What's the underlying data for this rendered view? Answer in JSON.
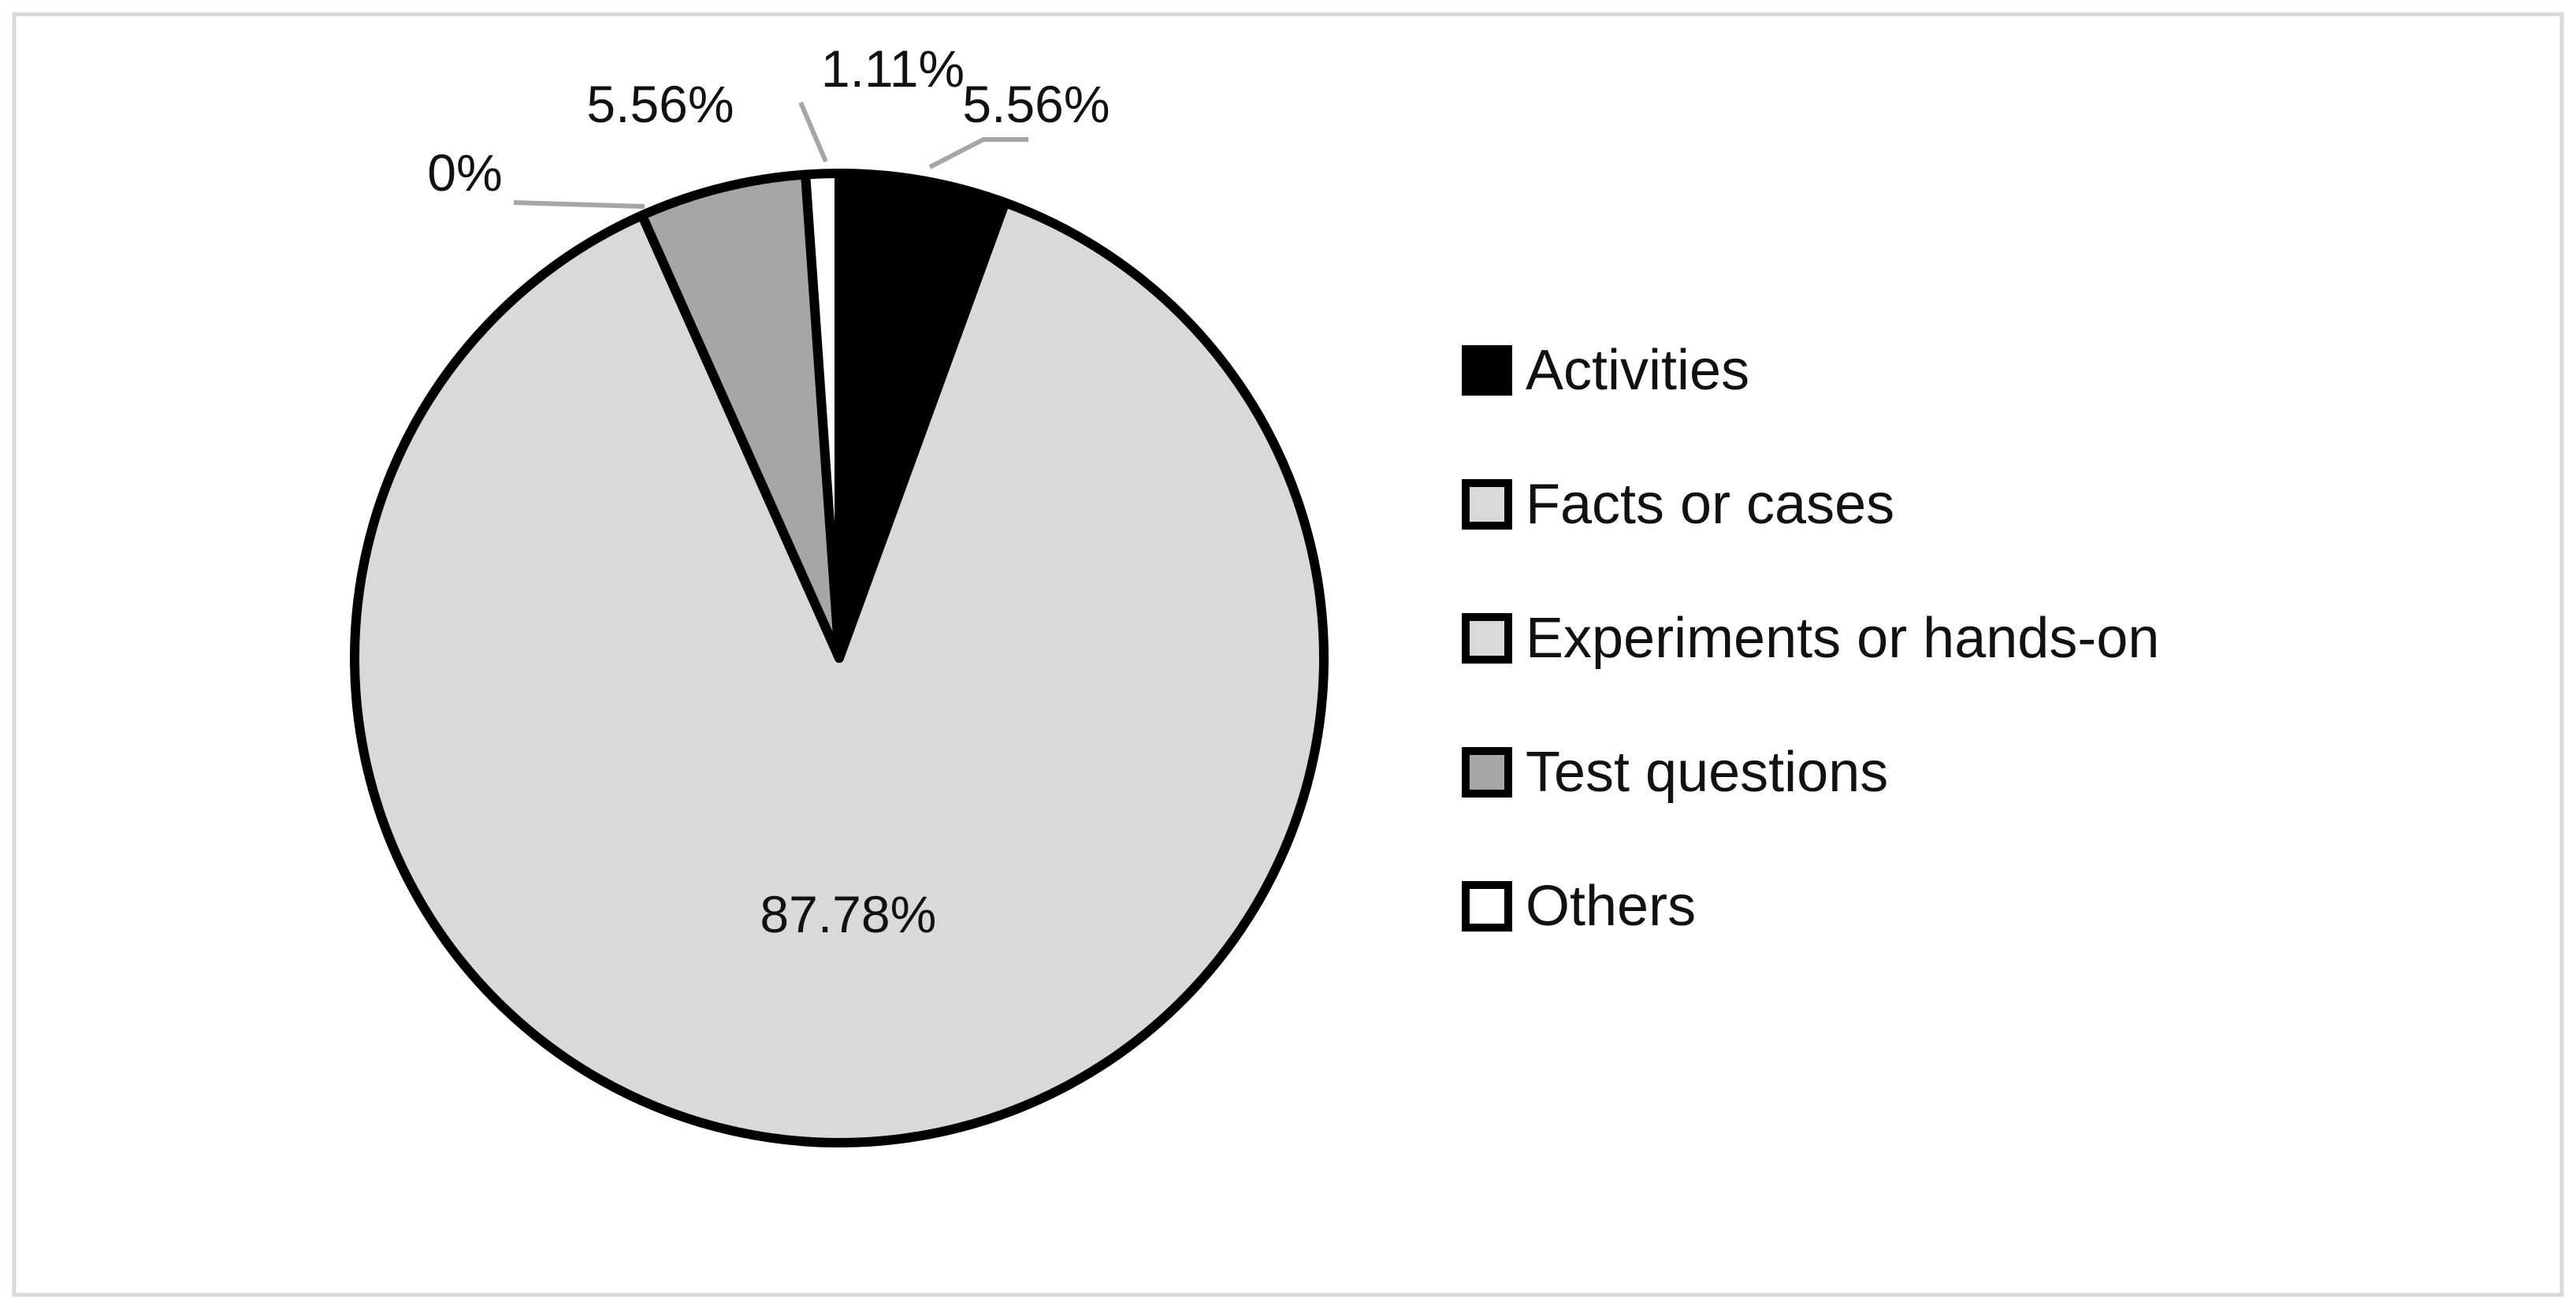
{
  "chart_data": {
    "type": "pie",
    "title": "",
    "categories": [
      "Activities",
      "Facts or cases",
      "Experiments or hands-on",
      "Test questions",
      "Others"
    ],
    "values": [
      5.56,
      87.78,
      0,
      5.56,
      1.11
    ],
    "value_labels": [
      "5.56%",
      "87.78%",
      "0%",
      "5.56%",
      "1.11%"
    ],
    "colors": [
      "#000000",
      "#d9d9d9",
      "#d9d9d9",
      "#a6a6a6",
      "#ffffff"
    ],
    "legend_position": "right",
    "start": "top",
    "direction": "clockwise"
  }
}
